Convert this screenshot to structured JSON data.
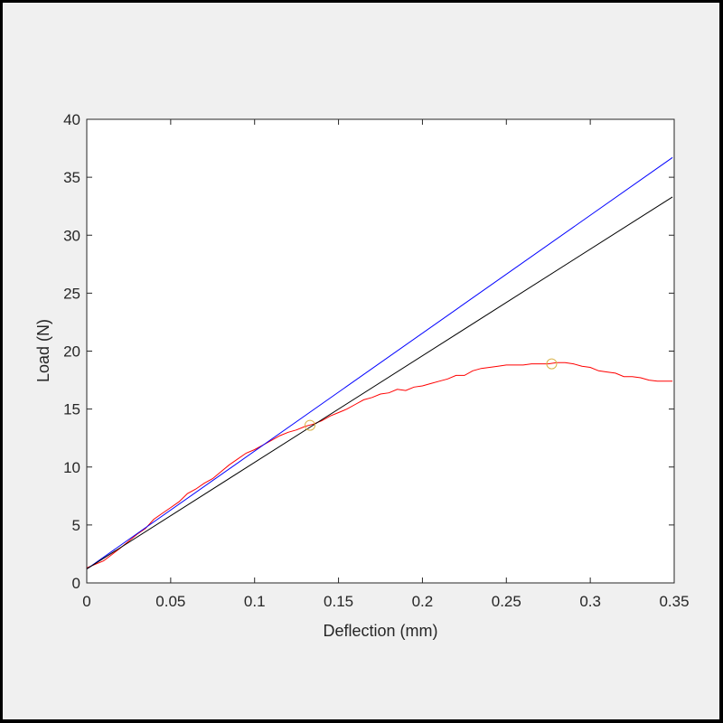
{
  "chart_data": {
    "type": "line",
    "title": "",
    "xlabel": "Deflection (mm)",
    "ylabel": "Load (N)",
    "xlim": [
      0,
      0.35
    ],
    "ylim": [
      0,
      40
    ],
    "xticks": [
      0,
      0.05,
      0.1,
      0.15,
      0.2,
      0.25,
      0.3,
      0.35
    ],
    "xtick_labels": [
      "0",
      "0.05",
      "0.1",
      "0.15",
      "0.2",
      "0.25",
      "0.3",
      "0.35"
    ],
    "yticks": [
      0,
      5,
      10,
      15,
      20,
      25,
      30,
      35,
      40
    ],
    "ytick_labels": [
      "0",
      "5",
      "10",
      "15",
      "20",
      "25",
      "30",
      "35",
      "40"
    ],
    "grid": false,
    "legend": "none",
    "series": [
      {
        "color": "#ff0000",
        "x": [
          0,
          0.01,
          0.02,
          0.03,
          0.035,
          0.04,
          0.045,
          0.05,
          0.055,
          0.06,
          0.065,
          0.07,
          0.075,
          0.08,
          0.085,
          0.09,
          0.095,
          0.1,
          0.105,
          0.11,
          0.115,
          0.12,
          0.125,
          0.13,
          0.135,
          0.14,
          0.145,
          0.15,
          0.155,
          0.16,
          0.165,
          0.17,
          0.175,
          0.18,
          0.185,
          0.19,
          0.195,
          0.2,
          0.205,
          0.21,
          0.215,
          0.22,
          0.225,
          0.23,
          0.235,
          0.24,
          0.245,
          0.25,
          0.255,
          0.26,
          0.265,
          0.27,
          0.275,
          0.28,
          0.285,
          0.29,
          0.295,
          0.3,
          0.305,
          0.31,
          0.315,
          0.32,
          0.325,
          0.33,
          0.335,
          0.34,
          0.345,
          0.349
        ],
        "y": [
          1.3,
          1.9,
          3.0,
          4.2,
          4.7,
          5.5,
          6.0,
          6.5,
          7.0,
          7.7,
          8.1,
          8.6,
          9.0,
          9.6,
          10.2,
          10.7,
          11.2,
          11.5,
          11.9,
          12.3,
          12.7,
          13.0,
          13.2,
          13.5,
          13.7,
          14.0,
          14.4,
          14.7,
          15.0,
          15.4,
          15.8,
          16.0,
          16.3,
          16.4,
          16.7,
          16.6,
          16.9,
          17.0,
          17.2,
          17.4,
          17.6,
          17.9,
          17.9,
          18.3,
          18.5,
          18.6,
          18.7,
          18.8,
          18.8,
          18.8,
          18.9,
          18.9,
          18.9,
          19.0,
          19.0,
          18.9,
          18.7,
          18.6,
          18.3,
          18.2,
          18.1,
          17.8,
          17.8,
          17.7,
          17.5,
          17.4,
          17.4,
          17.4
        ]
      },
      {
        "color": "#0000ff",
        "x": [
          0,
          0.349
        ],
        "y": [
          1.2,
          36.7
        ]
      },
      {
        "color": "#000000",
        "x": [
          0,
          0.349
        ],
        "y": [
          1.2,
          33.3
        ]
      }
    ],
    "markers": [
      {
        "x": 0.133,
        "y": 13.6,
        "color": "#d9b44a"
      },
      {
        "x": 0.277,
        "y": 18.9,
        "color": "#d9b44a"
      }
    ]
  }
}
